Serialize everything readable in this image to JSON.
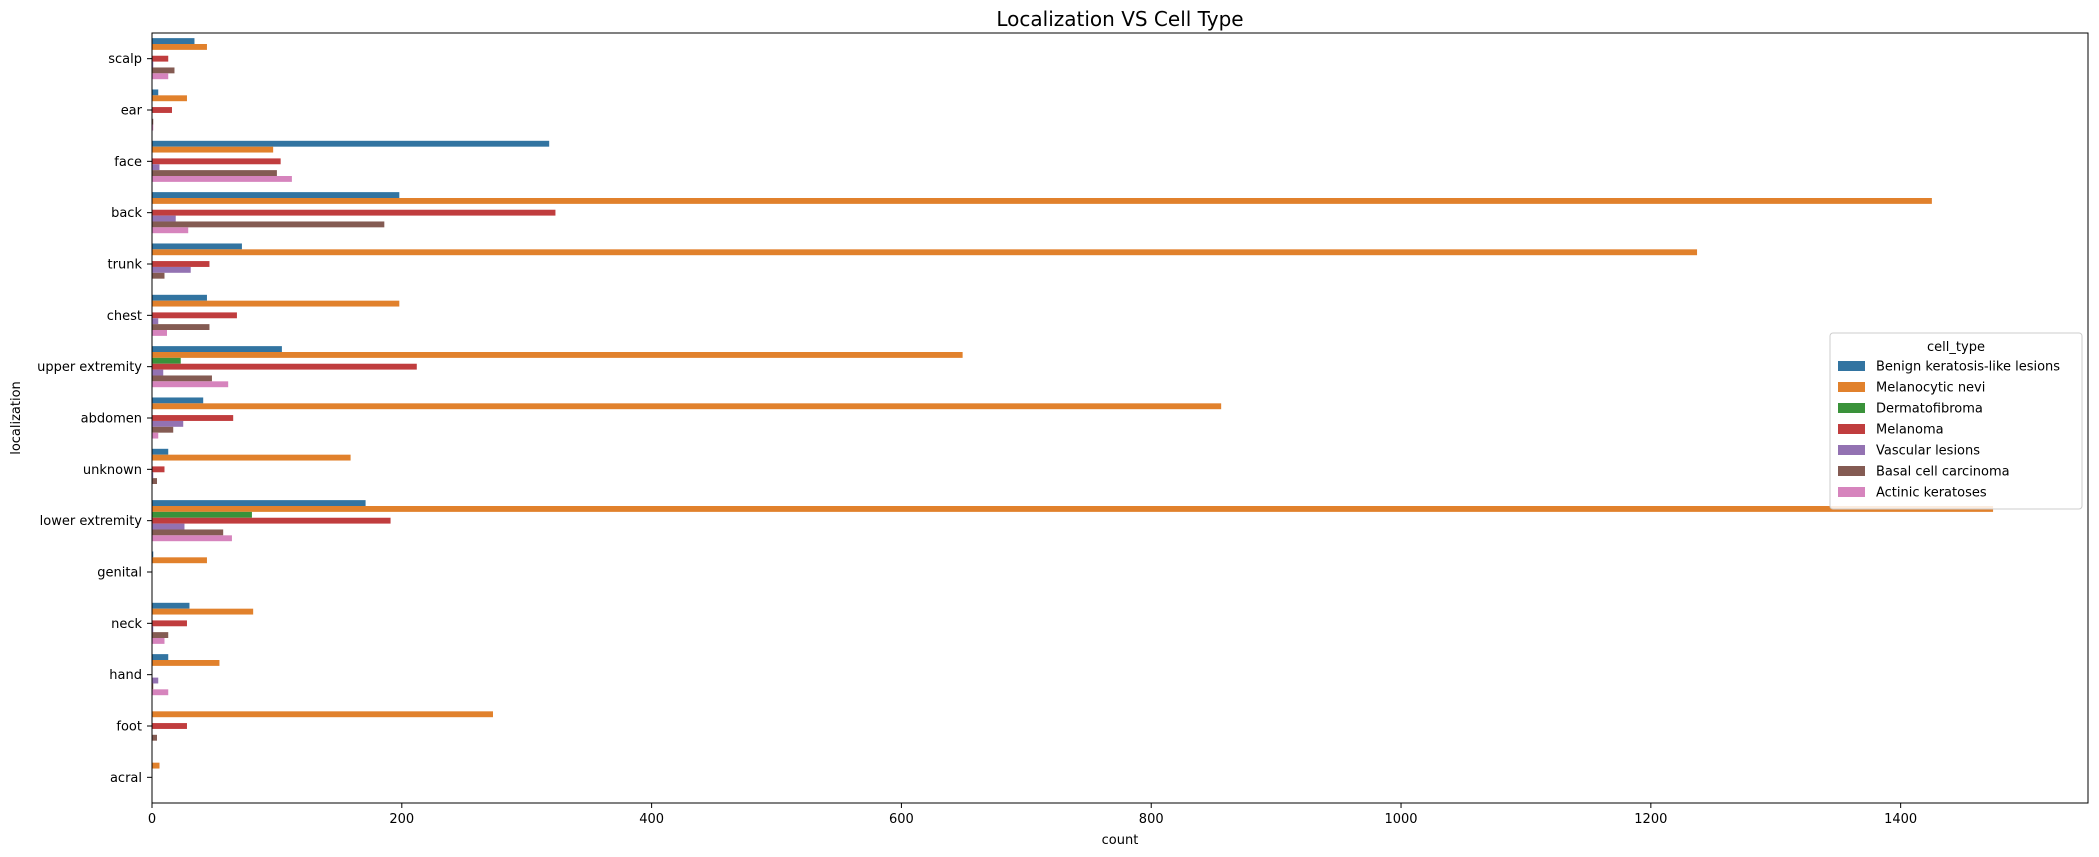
{
  "chart_data": {
    "type": "bar",
    "orientation": "horizontal",
    "title": "Localization VS Cell Type",
    "xlabel": "count",
    "ylabel": "localization",
    "xlim": [
      0,
      1550
    ],
    "xticks": [
      0,
      200,
      400,
      600,
      800,
      1000,
      1200,
      1400
    ],
    "xtick_labels": [
      "0",
      "200",
      "400",
      "600",
      "800",
      "1000",
      "1200",
      "1400"
    ],
    "grid": false,
    "legend": {
      "title": "cell_type",
      "placement": "center-right"
    },
    "categories": [
      "scalp",
      "ear",
      "face",
      "back",
      "trunk",
      "chest",
      "upper extremity",
      "abdomen",
      "unknown",
      "lower extremity",
      "genital",
      "neck",
      "hand",
      "foot",
      "acral"
    ],
    "series": [
      {
        "name": "Benign keratosis-like lesions",
        "color": "#3274a1",
        "values": [
          34,
          5,
          318,
          198,
          72,
          44,
          104,
          41,
          13,
          171,
          1,
          30,
          13,
          0,
          0
        ]
      },
      {
        "name": "Melanocytic nevi",
        "color": "#e1812c",
        "values": [
          44,
          28,
          97,
          1425,
          1237,
          198,
          649,
          856,
          159,
          1474,
          44,
          81,
          54,
          273,
          6
        ]
      },
      {
        "name": "Dermatofibroma",
        "color": "#3a923a",
        "values": [
          0,
          0,
          0,
          0,
          0,
          0,
          23,
          0,
          0,
          80,
          0,
          0,
          0,
          0,
          0
        ]
      },
      {
        "name": "Melanoma",
        "color": "#c03d3e",
        "values": [
          13,
          16,
          103,
          323,
          46,
          68,
          212,
          65,
          10,
          191,
          0,
          28,
          0,
          28,
          0
        ]
      },
      {
        "name": "Vascular lesions",
        "color": "#9372b2",
        "values": [
          1,
          0,
          6,
          19,
          31,
          5,
          9,
          25,
          1,
          26,
          0,
          1,
          5,
          0,
          0
        ]
      },
      {
        "name": "Basal cell carcinoma",
        "color": "#845b53",
        "values": [
          18,
          1,
          100,
          186,
          10,
          46,
          48,
          17,
          4,
          57,
          0,
          13,
          1,
          4,
          0
        ]
      },
      {
        "name": "Actinic keratoses",
        "color": "#d684bd",
        "values": [
          13,
          1,
          112,
          29,
          0,
          12,
          61,
          5,
          0,
          64,
          0,
          10,
          13,
          0,
          0
        ]
      }
    ]
  }
}
